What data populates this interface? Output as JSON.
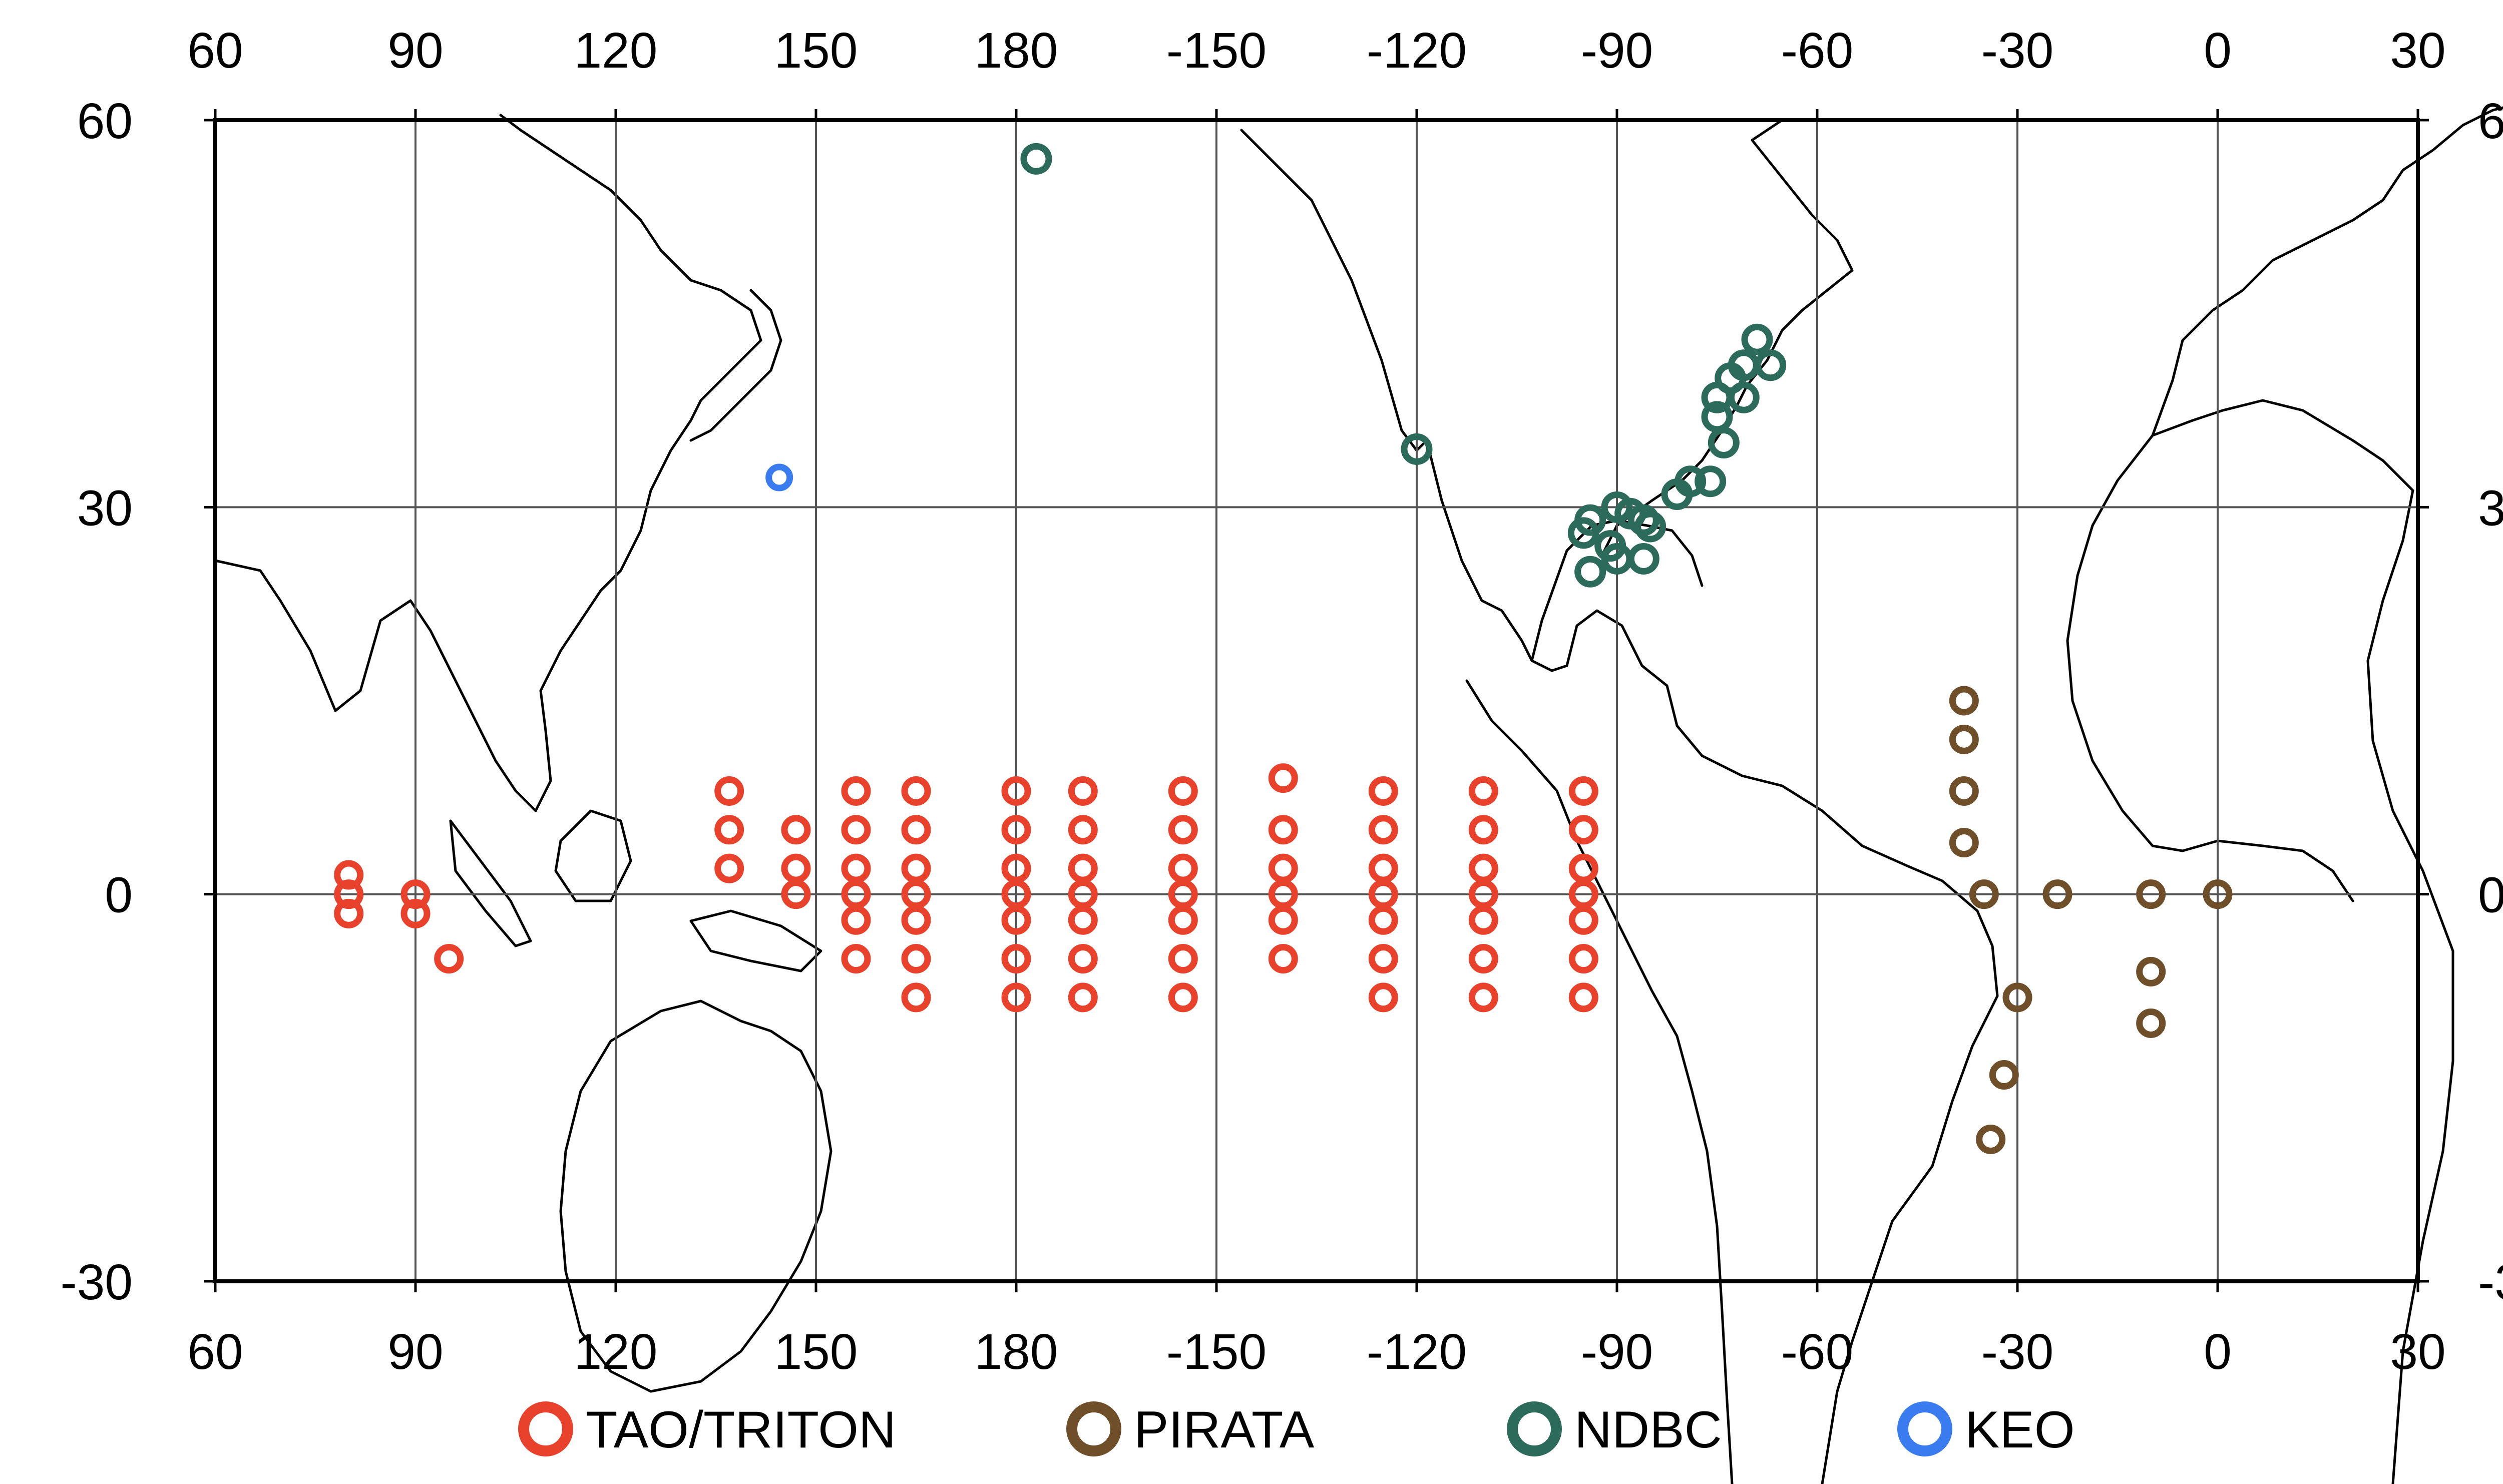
{
  "colors": {
    "TAO/TRITON": "#e8412c",
    "PIRATA": "#6e4f2a",
    "NDBC": "#2c6b5a",
    "KEO": "#3a7cf0"
  },
  "axes": {
    "x_ticks": [
      "60",
      "90",
      "120",
      "150",
      "180",
      "-150",
      "-120",
      "-90",
      "-60",
      "-30",
      "0",
      "30"
    ],
    "y_ticks": [
      "60",
      "30",
      "0",
      "-30"
    ]
  },
  "legend": [
    {
      "name": "TAO/TRITON",
      "label": "TAO/TRITON"
    },
    {
      "name": "PIRATA",
      "label": "PIRATA"
    },
    {
      "name": "NDBC",
      "label": "NDBC"
    },
    {
      "name": "KEO",
      "label": "KEO"
    }
  ],
  "buoys": {
    "TAO/TRITON": [
      [
        80,
        1.5
      ],
      [
        80,
        0
      ],
      [
        80,
        -1.5
      ],
      [
        90,
        0
      ],
      [
        90,
        -1.5
      ],
      [
        95,
        -5
      ],
      [
        137,
        8
      ],
      [
        137,
        5
      ],
      [
        137,
        2
      ],
      [
        147,
        5
      ],
      [
        147,
        2
      ],
      [
        147,
        0
      ],
      [
        156,
        8
      ],
      [
        156,
        5
      ],
      [
        156,
        2
      ],
      [
        156,
        0
      ],
      [
        156,
        -2
      ],
      [
        156,
        -5
      ],
      [
        165,
        8
      ],
      [
        165,
        5
      ],
      [
        165,
        2
      ],
      [
        165,
        0
      ],
      [
        165,
        -2
      ],
      [
        165,
        -5
      ],
      [
        165,
        -8
      ],
      [
        180,
        8
      ],
      [
        180,
        5
      ],
      [
        180,
        2
      ],
      [
        180,
        0
      ],
      [
        180,
        -2
      ],
      [
        180,
        -5
      ],
      [
        180,
        -8
      ],
      [
        190,
        8
      ],
      [
        190,
        5
      ],
      [
        190,
        2
      ],
      [
        190,
        0
      ],
      [
        190,
        -2
      ],
      [
        190,
        -5
      ],
      [
        190,
        -8
      ],
      [
        205,
        8
      ],
      [
        205,
        5
      ],
      [
        205,
        2
      ],
      [
        205,
        0
      ],
      [
        205,
        -2
      ],
      [
        205,
        -5
      ],
      [
        205,
        -8
      ],
      [
        220,
        9
      ],
      [
        220,
        5
      ],
      [
        220,
        2
      ],
      [
        220,
        0
      ],
      [
        220,
        -2
      ],
      [
        220,
        -5
      ],
      [
        235,
        8
      ],
      [
        235,
        5
      ],
      [
        235,
        2
      ],
      [
        235,
        0
      ],
      [
        235,
        -2
      ],
      [
        235,
        -5
      ],
      [
        235,
        -8
      ],
      [
        250,
        8
      ],
      [
        250,
        5
      ],
      [
        250,
        2
      ],
      [
        250,
        0
      ],
      [
        250,
        -2
      ],
      [
        250,
        -5
      ],
      [
        250,
        -8
      ],
      [
        265,
        8
      ],
      [
        265,
        5
      ],
      [
        265,
        2
      ],
      [
        265,
        0
      ],
      [
        265,
        -2
      ],
      [
        265,
        -5
      ],
      [
        265,
        -8
      ]
    ],
    "PIRATA": [
      [
        322,
        15
      ],
      [
        322,
        12
      ],
      [
        322,
        8
      ],
      [
        322,
        4
      ],
      [
        325,
        0
      ],
      [
        336,
        0
      ],
      [
        350,
        0
      ],
      [
        360,
        0
      ],
      [
        330,
        -8
      ],
      [
        328,
        -14
      ],
      [
        326,
        -19
      ],
      [
        350,
        -6
      ],
      [
        350,
        -10
      ]
    ],
    "NDBC": [
      [
        183,
        57
      ],
      [
        240,
        34.5
      ],
      [
        265,
        28
      ],
      [
        266,
        29
      ],
      [
        270,
        30
      ],
      [
        272,
        29.5
      ],
      [
        274,
        29
      ],
      [
        275,
        28.5
      ],
      [
        269,
        27
      ],
      [
        270,
        26
      ],
      [
        274,
        26
      ],
      [
        266,
        25
      ],
      [
        279,
        31
      ],
      [
        281,
        32
      ],
      [
        284,
        32
      ],
      [
        286,
        35
      ],
      [
        285,
        37
      ],
      [
        285,
        38.5
      ],
      [
        287,
        40
      ],
      [
        289,
        41
      ],
      [
        291,
        43
      ],
      [
        293,
        41
      ],
      [
        289,
        38.5
      ]
    ],
    "KEO": [
      [
        144.5,
        32.3
      ]
    ]
  }
}
